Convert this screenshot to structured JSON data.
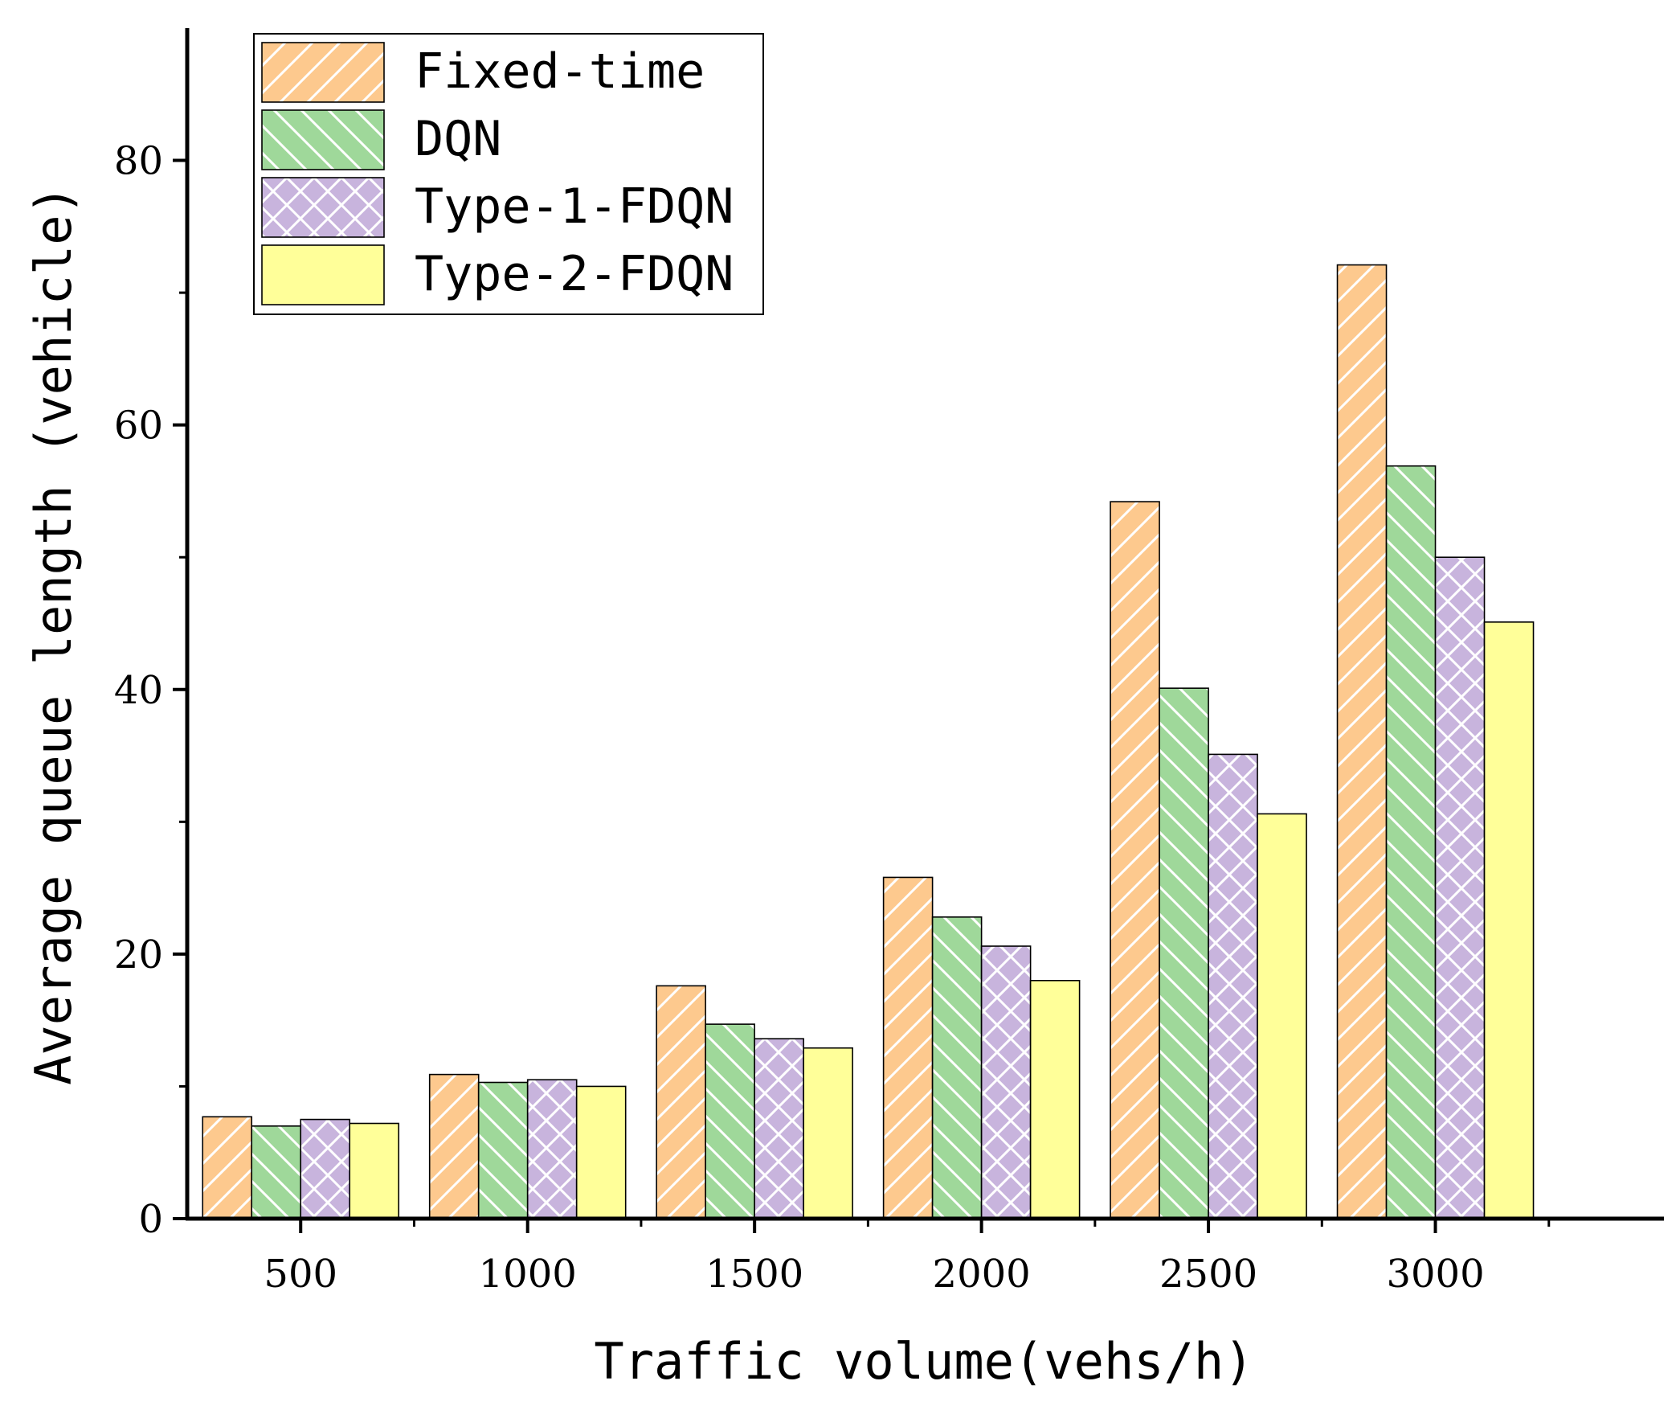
{
  "chart_data": {
    "type": "bar",
    "title": "",
    "xlabel": "Traffic volume(vehs/h)",
    "ylabel": "Average queue length (vehicle)",
    "categories": [
      "500",
      "1000",
      "1500",
      "2000",
      "2500",
      "3000"
    ],
    "ylim": [
      0,
      90
    ],
    "yticks": [
      0,
      20,
      40,
      60,
      80
    ],
    "grid": false,
    "legend_position": "top-left",
    "series": [
      {
        "name": "Fixed-time",
        "color": "#FDC98E",
        "pattern": "forward-diagonal",
        "values": [
          7.7,
          10.9,
          17.6,
          25.8,
          54.2,
          72.1
        ]
      },
      {
        "name": "DQN",
        "color": "#9FD89A",
        "pattern": "backward-diagonal",
        "values": [
          7.0,
          10.3,
          14.7,
          22.8,
          40.1,
          56.9
        ]
      },
      {
        "name": "Type-1-FDQN",
        "color": "#C8B4DD",
        "pattern": "crosshatch",
        "values": [
          7.5,
          10.5,
          13.6,
          20.6,
          35.1,
          50.0
        ]
      },
      {
        "name": "Type-2-FDQN",
        "color": "#FFFF99",
        "pattern": "none",
        "values": [
          7.2,
          10.0,
          12.9,
          18.0,
          30.6,
          45.1
        ]
      }
    ]
  }
}
